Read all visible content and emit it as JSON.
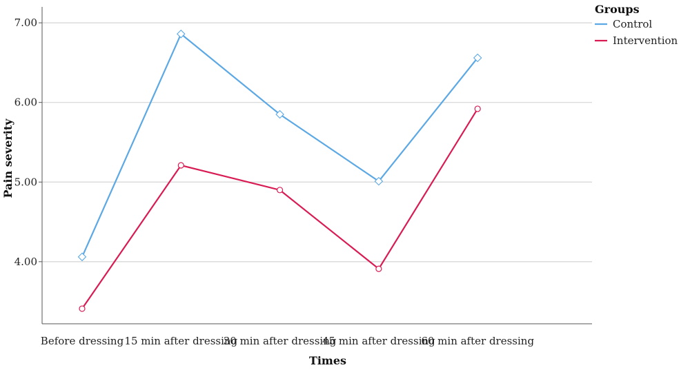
{
  "chart_data": {
    "type": "line",
    "title": "",
    "xlabel": "Times",
    "ylabel": "Pain severity",
    "categories": [
      "Before dressing",
      "15 min after dressing",
      "30 min after dressing",
      "45 min after dressing",
      "60 min after dressing"
    ],
    "ylim": [
      3.22,
      7.2
    ],
    "yticks": [
      "4.00",
      "5.00",
      "6.00",
      "7.00"
    ],
    "grid": true,
    "legend": {
      "title": "Groups",
      "position": "top-right"
    },
    "series": [
      {
        "name": "Control",
        "color": "#5ba8e5",
        "marker": "diamond",
        "values": [
          4.06,
          6.86,
          5.85,
          5.01,
          6.56
        ]
      },
      {
        "name": "Intervention",
        "color": "#d81b53",
        "marker": "circle",
        "values": [
          3.41,
          5.21,
          4.9,
          3.91,
          5.92
        ]
      }
    ]
  }
}
